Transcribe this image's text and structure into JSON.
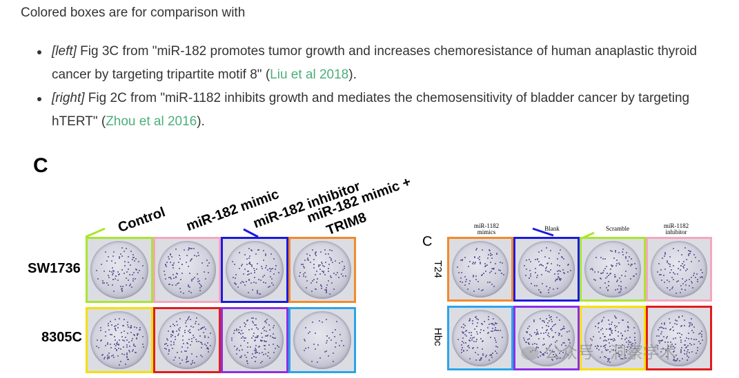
{
  "intro": "Colored boxes are for comparison with",
  "refs": [
    {
      "tag": "[left]",
      "text_before": " Fig 3C from \"miR-182 promotes tumor growth and increases chemoresistance of human anaplastic thyroid cancer by targeting tripartite motif 8\" (",
      "link": "Liu et al 2018",
      "text_after": ")."
    },
    {
      "tag": "[right]",
      "text_before": " Fig 2C from \"miR-1182 inhibits growth and mediates the chemosensitivity of bladder cancer by targeting hTERT\" (",
      "link": "Zhou et al 2016",
      "text_after": ")."
    }
  ],
  "left_figure": {
    "panel_letter": "C",
    "conditions": [
      "Control",
      "miR-182 mimic",
      "miR-182 inhibitor",
      "miR-182 mimic +",
      "TRIM8"
    ],
    "rows": [
      "SW1736",
      "8305C"
    ],
    "row1_colors": [
      "#a8e62e",
      "#f4a7bd",
      "#1a1adf",
      "#f28a2a"
    ],
    "row2_colors": [
      "#f5e000",
      "#e21b1b",
      "#8b2fe8",
      "#2aa5e8"
    ]
  },
  "right_figure": {
    "panel_letter": "C",
    "column_labels": [
      "miR-1182\nmimics",
      "Blank",
      "Scramble",
      "miR-1182\ninhibitor"
    ],
    "rows": [
      "T24",
      "Hbc"
    ],
    "row1_colors": [
      "#f28a2a",
      "#1a1adf",
      "#a8e62e",
      "#f4a7bd"
    ],
    "row2_colors": [
      "#2aa5e8",
      "#8b2fe8",
      "#f5e000",
      "#e21b1b"
    ]
  },
  "watermark": "公众号 · 洞察学术"
}
